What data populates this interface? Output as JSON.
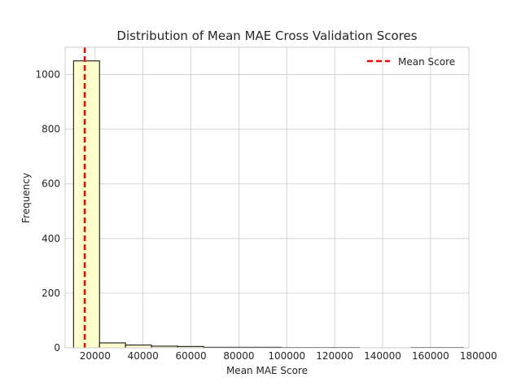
{
  "chart_data": {
    "type": "bar",
    "title": "Distribution of Mean MAE Cross Validation Scores",
    "xlabel": "Mean MAE Score",
    "ylabel": "Frequency",
    "xlim": [
      7500,
      176000
    ],
    "ylim": [
      0,
      1100
    ],
    "xticks": [
      20000,
      40000,
      60000,
      80000,
      100000,
      120000,
      140000,
      160000,
      180000
    ],
    "yticks": [
      0,
      200,
      400,
      600,
      800,
      1000
    ],
    "grid": true,
    "legend_position": "top-right",
    "bin_edges": [
      11000,
      21850,
      32700,
      43550,
      54400,
      65250,
      76100,
      86950,
      97800,
      108650,
      119500,
      130350,
      141200,
      152050,
      162900,
      173750
    ],
    "counts": [
      1050,
      18,
      10,
      6,
      5,
      2,
      2,
      2,
      1,
      1,
      1,
      0,
      0,
      1,
      1
    ],
    "mean_line": {
      "label": "Mean Score",
      "value": 15700
    },
    "colors": {
      "bar_fill": "#ffffcc",
      "bar_edge": "#000000",
      "mean_line": "#ff0000",
      "grid": "#cccccc",
      "text": "#262626"
    }
  }
}
